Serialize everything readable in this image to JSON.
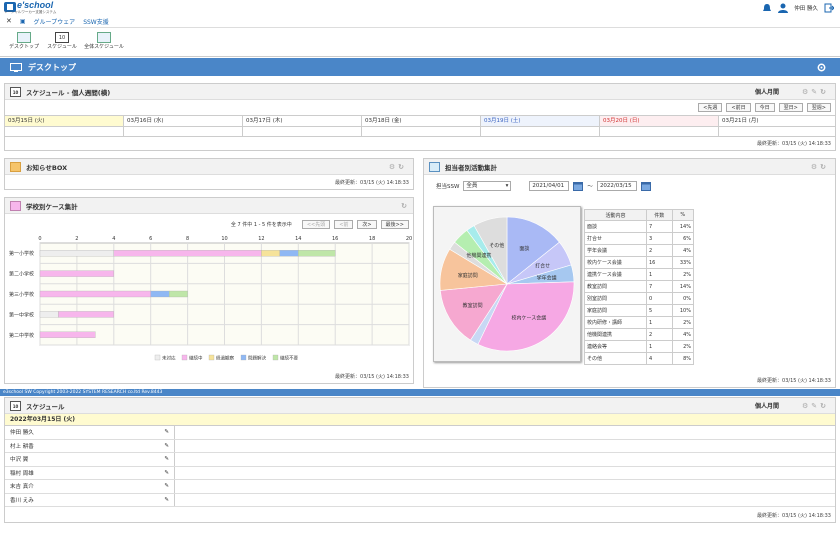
{
  "app": {
    "logo": "e'school",
    "logo_sub": "ソーシャルワーカー支援システム",
    "user": "仲田 勝久"
  },
  "nav": {
    "close": "✕",
    "menu_icon": "▣",
    "links": [
      "グループウェア",
      "SSW支援"
    ]
  },
  "apps": [
    {
      "label": "デスクトップ",
      "sel": false
    },
    {
      "label": "スケジュール",
      "sel": true
    },
    {
      "label": "全体スケジュール",
      "sel": false
    }
  ],
  "header": {
    "title": "デスクトップ"
  },
  "week": {
    "title": "スケジュール - 個人週間(横)",
    "view": "個人月間",
    "buttons": [
      "<先週",
      "<前日",
      "今日",
      "翌日>",
      "翌週>"
    ],
    "days": [
      "03月15日 (火)",
      "03月16日 (水)",
      "03月17日 (木)",
      "03月18日 (金)",
      "03月19日 (土)",
      "03月20日 (日)",
      "03月21日 (月)"
    ],
    "updated": "最終更新：03/15 (火) 14:18:33"
  },
  "notice": {
    "title": "お知らせBOX",
    "updated": "最終更新：03/15 (火) 14:18:33"
  },
  "cases": {
    "title": "学校別ケース集計",
    "pager": "全 7 件中 1 - 5 件を表示中",
    "pager_buttons": [
      "<<先頭",
      "<前",
      "次>",
      "最後>>"
    ],
    "updated": "最終更新：03/15 (火) 14:18:33",
    "legend": [
      "未対応",
      "継続中",
      "経過観察",
      "問題解決",
      "継続不要"
    ]
  },
  "chart_data": {
    "type": "bar",
    "stacked": true,
    "orientation": "horizontal",
    "categories": [
      "第一小学校",
      "第二小学校",
      "第三小学校",
      "第一中学校",
      "第二中学校"
    ],
    "xlim": [
      0,
      20
    ],
    "xticks": [
      "0",
      "2",
      "4",
      "6",
      "8",
      "10",
      "12",
      "14",
      "16",
      "18",
      "20"
    ],
    "series": [
      {
        "name": "未対応",
        "color": "#eeeeee",
        "values": [
          4,
          0,
          0,
          1,
          0
        ]
      },
      {
        "name": "継続中",
        "color": "#f7b6ec",
        "values": [
          8,
          4,
          6,
          3,
          3
        ]
      },
      {
        "name": "経過観察",
        "color": "#f6e39a",
        "values": [
          1,
          0,
          0,
          0,
          0
        ]
      },
      {
        "name": "問題解決",
        "color": "#8fb8f4",
        "values": [
          1,
          0,
          1,
          0,
          0
        ]
      },
      {
        "name": "継続不要",
        "color": "#bfe6a8",
        "values": [
          2,
          0,
          1,
          0,
          0
        ]
      }
    ]
  },
  "activity": {
    "title": "担当者別活動集計",
    "ssw_label": "担当SSW",
    "ssw_value": "全員",
    "date_from": "2021/04/01",
    "date_to": "2022/03/15",
    "tilde": "～",
    "table_headers": [
      "活動内容",
      "件数",
      "%"
    ],
    "rows": [
      [
        "面談",
        "7",
        "14%"
      ],
      [
        "打合せ",
        "3",
        "6%"
      ],
      [
        "学年会議",
        "2",
        "4%"
      ],
      [
        "校内ケース会議",
        "16",
        "33%"
      ],
      [
        "連携ケース会議",
        "1",
        "2%"
      ],
      [
        "教室訪問",
        "7",
        "14%"
      ],
      [
        "別室訪問",
        "0",
        "0%"
      ],
      [
        "家庭訪問",
        "5",
        "10%"
      ],
      [
        "校内研修・講師",
        "1",
        "2%"
      ],
      [
        "他機関連携",
        "2",
        "4%"
      ],
      [
        "連絡会等",
        "1",
        "2%"
      ],
      [
        "その他",
        "4",
        "8%"
      ]
    ],
    "pie_labels": [
      "面談",
      "打合せ",
      "学年会議",
      "校内ケース会議",
      "教室訪問",
      "家庭訪問",
      "他機関連携",
      "その他"
    ],
    "pie_colors": [
      "#a9b9f5",
      "#c6c7f8",
      "#a6c8f0",
      "#f6a8e4",
      "#f6a8d0",
      "#f7c49c",
      "#b5eeb0",
      "#a7ecec",
      "#dddddd"
    ],
    "updated": "最終更新：03/15 (火) 14:18:33"
  },
  "footer": "e3school SW Copyright 2003-2022 SYSTEM RESEARCH co.ltd Rev.8443",
  "daily": {
    "title": "スケジュール",
    "view": "個人月間",
    "date": "2022年03月15日 (火)",
    "people": [
      "仲田 勝久",
      "村上 耕香",
      "中沢 翼",
      "稲村 周雄",
      "末吉 真介",
      "香川 えみ"
    ],
    "updated": "最終更新：03/15 (火) 14:18:33"
  }
}
